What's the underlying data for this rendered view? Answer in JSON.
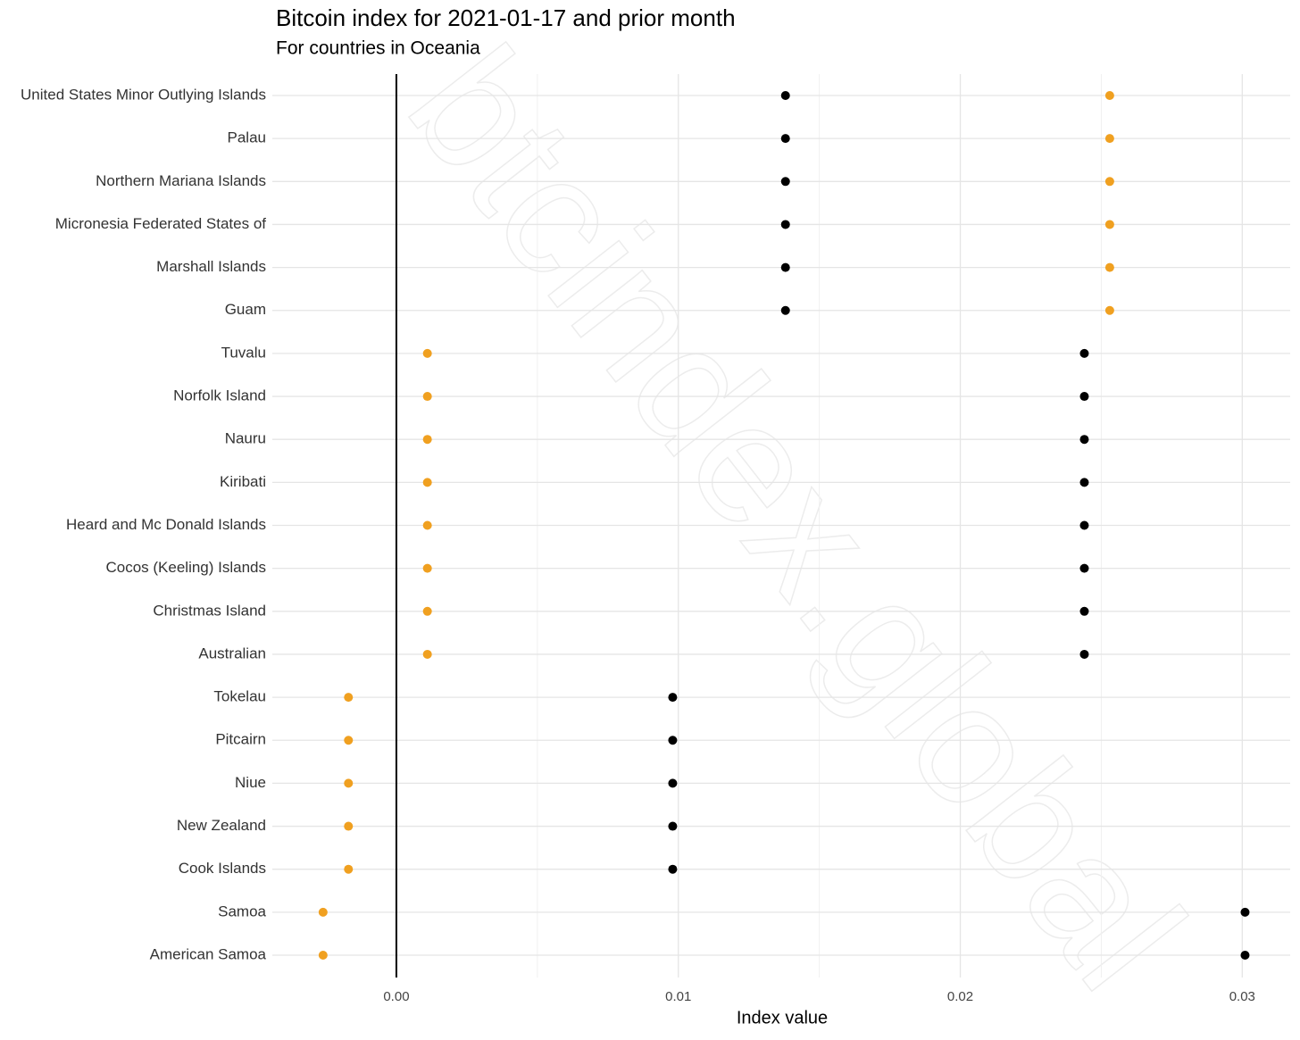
{
  "chart_data": {
    "type": "dot",
    "title": "Bitcoin index for 2021-01-17 and prior month",
    "subtitle": "For countries in Oceania",
    "x_label": "Index value",
    "watermark": "btcindex.global",
    "categories": [
      "United States Minor Outlying Islands",
      "Palau",
      "Northern Mariana Islands",
      "Micronesia Federated States of",
      "Marshall Islands",
      "Guam",
      "Tuvalu",
      "Norfolk Island",
      "Nauru",
      "Kiribati",
      "Heard and Mc Donald Islands",
      "Cocos (Keeling) Islands",
      "Christmas Island",
      "Australian",
      "Tokelau",
      "Pitcairn",
      "Niue",
      "New Zealand",
      "Cook Islands",
      "Samoa",
      "American Samoa"
    ],
    "series": [
      {
        "color": "#000000",
        "values": [
          0.0138,
          0.0138,
          0.0138,
          0.0138,
          0.0138,
          0.0138,
          0.0244,
          0.0244,
          0.0244,
          0.0244,
          0.0244,
          0.0244,
          0.0244,
          0.0244,
          0.0098,
          0.0098,
          0.0098,
          0.0098,
          0.0098,
          0.0301,
          0.0301
        ]
      },
      {
        "color": "#f0a020",
        "values": [
          0.0253,
          0.0253,
          0.0253,
          0.0253,
          0.0253,
          0.0253,
          0.0011,
          0.0011,
          0.0011,
          0.0011,
          0.0011,
          0.0011,
          0.0011,
          0.0011,
          -0.0017,
          -0.0017,
          -0.0017,
          -0.0017,
          -0.0017,
          -0.0026,
          -0.0026
        ]
      }
    ],
    "xlim": [
      -0.0044,
      0.0317
    ],
    "xticks": [
      {
        "value": 0,
        "label": "0.00"
      },
      {
        "value": 0.01,
        "label": "0.01"
      },
      {
        "value": 0.02,
        "label": "0.02"
      },
      {
        "value": 0.03,
        "label": "0.03"
      }
    ],
    "x_minor_gridlines": [
      0.005,
      0.015,
      0.025
    ],
    "zero_line": true,
    "grid": true
  }
}
